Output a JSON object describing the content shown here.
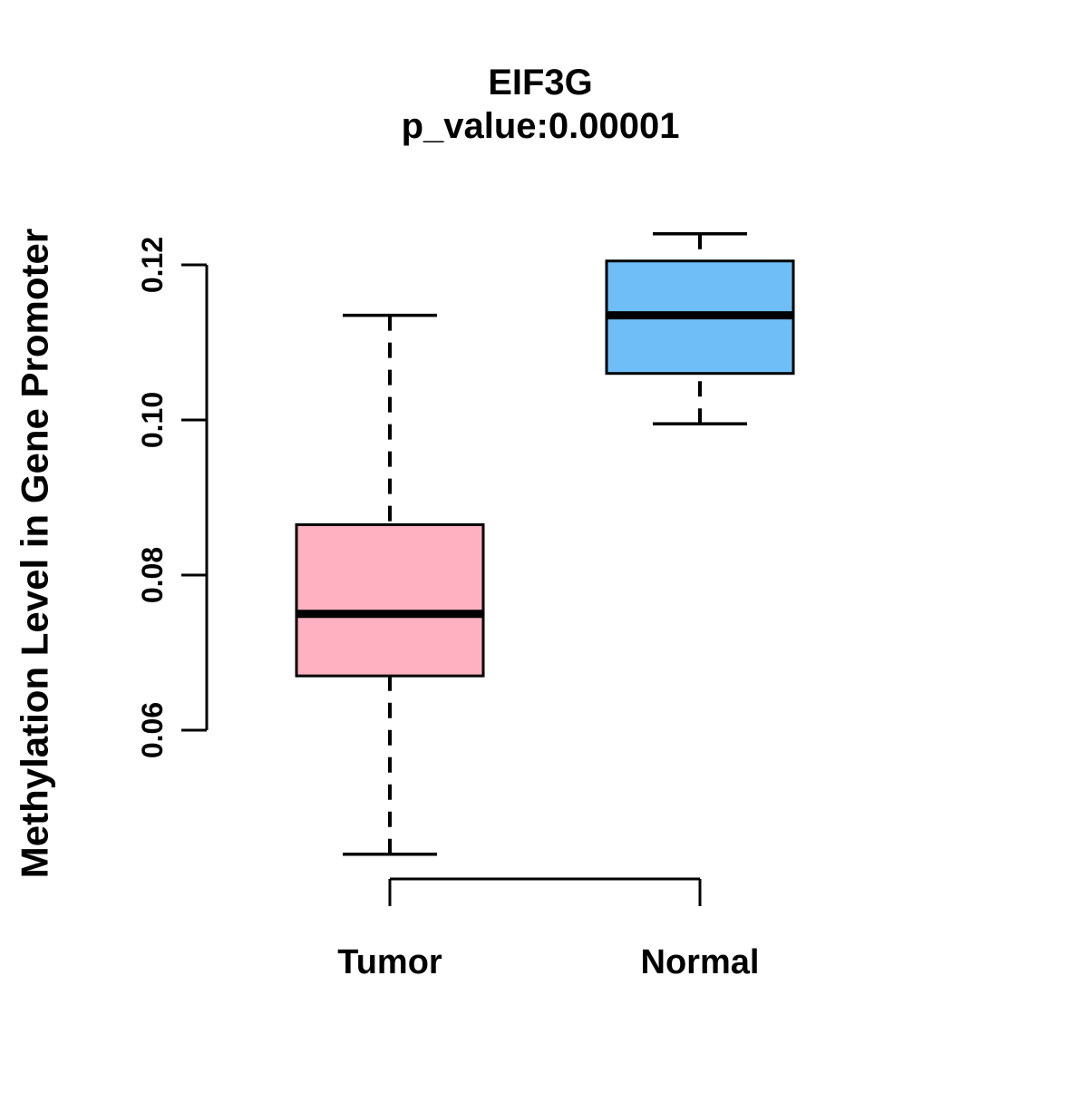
{
  "page": {
    "background": "#FFFFFF",
    "text_color": "#000000"
  },
  "chart_data": {
    "type": "boxplot",
    "title": "EIF3G",
    "subtitle": "p_value:0.00001",
    "ylabel": "Methylation Level in Gene Promoter",
    "xlabel": "",
    "categories": [
      "Tumor",
      "Normal"
    ],
    "yticks": [
      0.06,
      0.08,
      0.1,
      0.12
    ],
    "ylim": [
      0.041,
      0.127
    ],
    "grid": false,
    "legend_position": "none",
    "stroke_color": "#000000",
    "whisker_style": "dashed",
    "series": [
      {
        "name": "Tumor",
        "box_color": "#FFB1C1",
        "whisker_low": 0.044,
        "q1": 0.067,
        "median": 0.075,
        "q3": 0.0865,
        "whisker_high": 0.1135
      },
      {
        "name": "Normal",
        "box_color": "#6FBEF8",
        "whisker_low": 0.0995,
        "q1": 0.106,
        "median": 0.1135,
        "q3": 0.1205,
        "whisker_high": 0.124
      }
    ]
  }
}
